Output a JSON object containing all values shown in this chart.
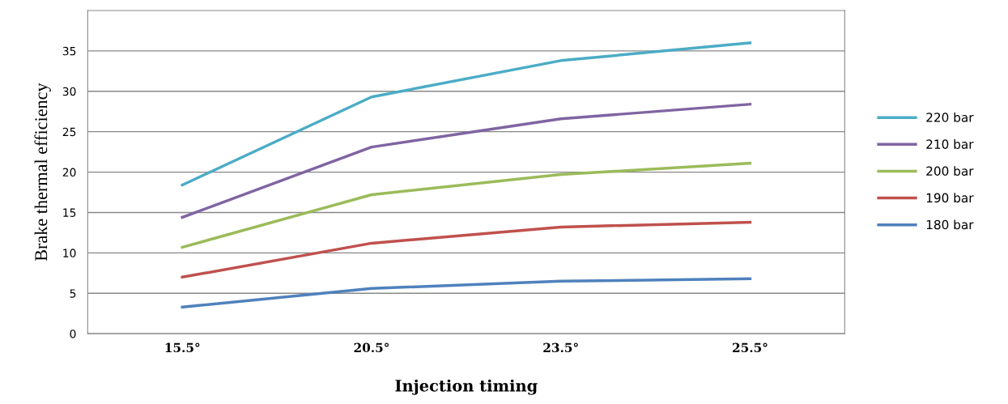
{
  "chart_data": {
    "type": "line",
    "xlabel": "Injection timing",
    "ylabel": "Brake thermal efficiency",
    "categories": [
      "15.5°",
      "20.5°",
      "23.5°",
      "25.5°"
    ],
    "series": [
      {
        "name": "220 bar",
        "color": "#4bacc6",
        "values": [
          18.4,
          29.3,
          33.8,
          36.0
        ]
      },
      {
        "name": "210 bar",
        "color": "#8064a2",
        "values": [
          14.4,
          23.1,
          26.6,
          28.4
        ]
      },
      {
        "name": "200 bar",
        "color": "#9bbb59",
        "values": [
          10.7,
          17.2,
          19.7,
          21.1
        ]
      },
      {
        "name": "190 bar",
        "color": "#c0504d",
        "values": [
          7.0,
          11.2,
          13.2,
          13.8
        ]
      },
      {
        "name": "180 bar",
        "color": "#4f81bd",
        "values": [
          3.3,
          5.6,
          6.5,
          6.8
        ]
      }
    ],
    "ylim": [
      0,
      40
    ],
    "yticks": [
      0,
      5,
      10,
      15,
      20,
      25,
      30,
      35
    ],
    "grid": "y",
    "legend": "right",
    "marker": "none",
    "line_style": "solid"
  }
}
